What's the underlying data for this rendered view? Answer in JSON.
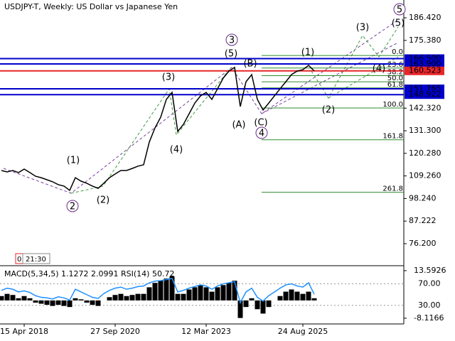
{
  "chart_data": [
    {
      "type": "line",
      "title": "USDJPY-T, Weekly:  US Dollar vs Japanese Yen",
      "categories": [
        null,
        null,
        null,
        null,
        "15 Apr 2018",
        null,
        null,
        null,
        null,
        null,
        null,
        null,
        null,
        null,
        null,
        null,
        null,
        null,
        null,
        null,
        "27 Sep 2020",
        null,
        null,
        null,
        null,
        null,
        null,
        null,
        null,
        null,
        null,
        null,
        null,
        null,
        null,
        null,
        "12 Mar 2023",
        null,
        null,
        null,
        null,
        null,
        null,
        null,
        null,
        null,
        null,
        null,
        null,
        null,
        null,
        null,
        null,
        "24 Aug 2025",
        null,
        null
      ],
      "series": [
        {
          "color": "#000000",
          "values": [
            111.9,
            111.2,
            111.9,
            110.9,
            112.6,
            110.9,
            109.1,
            108.4,
            107.4,
            106.4,
            105.0,
            104.3,
            102.2,
            108.4,
            106.7,
            105.7,
            104.3,
            103.2,
            105.7,
            108.4,
            110.2,
            111.9,
            111.9,
            112.9,
            114.0,
            114.7,
            125.8,
            132.7,
            137.9,
            146.6,
            150.0,
            131.0,
            134.4,
            139.6,
            144.8,
            148.3,
            150.0,
            146.6,
            151.8,
            157.0,
            160.4,
            162.2,
            143.1,
            155.2,
            158.7,
            146.6,
            141.4,
            144.8,
            148.3,
            151.8,
            155.2,
            158.7,
            160.4,
            161.1,
            163.2,
            160.5
          ]
        }
      ],
      "ylim": [
        65.8,
        195.1
      ],
      "yticks": [
        {
          "value": 186.42,
          "label": "186.420"
        },
        {
          "value": 175.38,
          "label": "175.380"
        },
        {
          "value": 142.32,
          "label": "142.320"
        },
        {
          "value": 131.3,
          "label": "131.300"
        },
        {
          "value": 120.28,
          "label": "120.280"
        },
        {
          "value": 109.26,
          "label": "109.260"
        },
        {
          "value": 98.24,
          "label": "98.240"
        },
        {
          "value": 87.222,
          "label": "87.222"
        },
        {
          "value": 76.2,
          "label": "76.200"
        }
      ],
      "levels": [
        {
          "value": 166.5,
          "label": "166.500",
          "color": "#0000cd"
        },
        {
          "value": 163.9,
          "label": "163.900",
          "color": "#0000cd"
        },
        {
          "value": 160.523,
          "label": "160.523",
          "color": "#e8262a"
        },
        {
          "value": 151.765,
          "label": "151.765",
          "color": "#0000cd"
        },
        {
          "value": 148.922,
          "label": "148.922",
          "color": "#0000cd"
        }
      ],
      "fibonacci": [
        {
          "label": "0.0",
          "price": 168.0
        },
        {
          "label": "23.6",
          "price": 161.9
        },
        {
          "label": "38.2",
          "price": 158.2
        },
        {
          "label": "50.0",
          "price": 155.2
        },
        {
          "label": "61.8",
          "price": 152.2
        },
        {
          "label": "100.0",
          "price": 142.4
        },
        {
          "label": "161.8",
          "price": 126.9
        },
        {
          "label": "261.8",
          "price": 101.3
        }
      ],
      "wave_labels": [
        {
          "text": "(1)",
          "color": "#3e9b3e"
        },
        {
          "text": "2",
          "color": "#6a2c8c",
          "circled": true
        },
        {
          "text": "(2)",
          "color": "#3e9b3e"
        },
        {
          "text": "(3)",
          "color": "#3e9b3e"
        },
        {
          "text": "(4)",
          "color": "#3e9b3e"
        },
        {
          "text": "3",
          "color": "#6a2c8c",
          "circled": true
        },
        {
          "text": "(5)",
          "color": "#3e9b3e"
        },
        {
          "text": "(A)",
          "color": "#3e9b3e"
        },
        {
          "text": "(B)",
          "color": "#3e9b3e"
        },
        {
          "text": "(C)",
          "color": "#3e9b3e"
        },
        {
          "text": "4",
          "color": "#6a2c8c",
          "circled": true
        },
        {
          "text": "(1)",
          "color": "#3e9b3e"
        },
        {
          "text": "(2)",
          "color": "#3e9b3e"
        },
        {
          "text": "(3)",
          "color": "#3e9b3e"
        },
        {
          "text": "(4)",
          "color": "#3e9b3e"
        },
        {
          "text": "(5)",
          "color": "#3e9b3e"
        },
        {
          "text": "5",
          "color": "#6a2c8c",
          "circled": true
        }
      ],
      "timer_bars": 0,
      "timer": "21:30"
    },
    {
      "type": "bar",
      "title": "MACD(5,34,5) 1.1272 2.0991 RSI(14) 50.72",
      "series": [
        {
          "color": "#000000",
          "values": [
            2,
            3,
            2.5,
            1,
            2,
            1,
            -1,
            -1.5,
            -2,
            -2.5,
            -2,
            -2.5,
            -3,
            1,
            0.5,
            -1,
            -2,
            -2.5,
            0,
            1.5,
            2.5,
            3,
            2,
            2.5,
            3,
            3,
            6,
            8,
            9,
            10,
            11,
            3,
            3,
            5,
            6,
            7,
            6,
            4,
            6,
            7,
            8,
            9,
            -8,
            -3,
            1,
            -4,
            -6,
            -3,
            0,
            2,
            4,
            5,
            4,
            3,
            4,
            1
          ]
        },
        {
          "color": "#1e90ff",
          "axis": "y2",
          "values": [
            58,
            62,
            60,
            55,
            57,
            54,
            48,
            45,
            44,
            42,
            46,
            44,
            40,
            60,
            55,
            50,
            45,
            43,
            52,
            58,
            62,
            64,
            60,
            62,
            65,
            66,
            72,
            75,
            76,
            78,
            80,
            55,
            58,
            62,
            65,
            68,
            66,
            60,
            66,
            70,
            72,
            74,
            35,
            55,
            62,
            45,
            38,
            48,
            55,
            62,
            68,
            70,
            66,
            64,
            72,
            50.72
          ]
        }
      ],
      "ylim": [
        -10.4,
        15.2
      ],
      "yticks": [
        13.5926,
        -8.1166
      ],
      "y2lim": [
        -3,
        101
      ],
      "y2ticks": [
        {
          "value": 70,
          "label": "70.00"
        },
        {
          "value": 30,
          "label": "30.00"
        }
      ]
    }
  ]
}
